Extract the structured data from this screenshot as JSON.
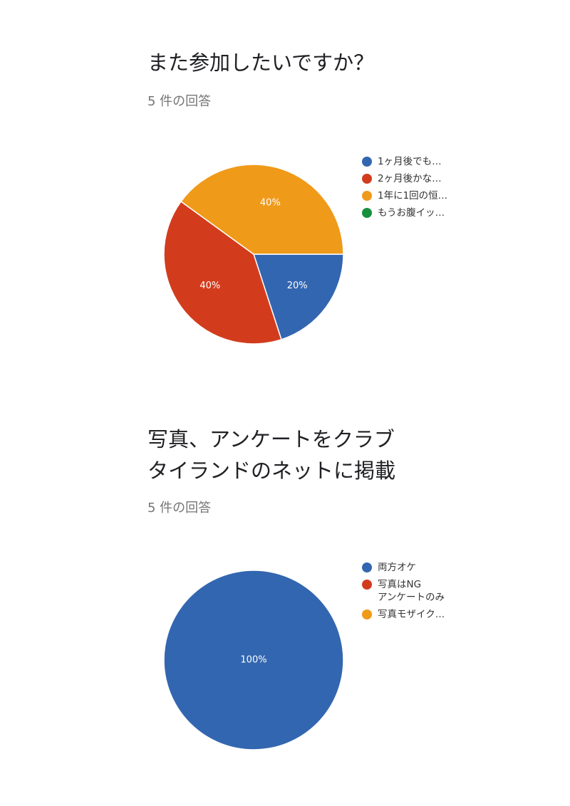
{
  "survey": {
    "questions": [
      {
        "title": "また参加したいですか？",
        "response_count": "5 件の回答"
      },
      {
        "title": "写真、アンケートをクラブ\nタイランドのネットに掲載",
        "response_count": "5 件の回答"
      }
    ]
  },
  "chart_data": [
    {
      "type": "pie",
      "title": "また参加したいですか？",
      "labels": [
        "1ヶ月後でも…",
        "2ヶ月後かな…",
        "1年に1回の恒…",
        "もうお腹イッ…"
      ],
      "values": [
        20,
        40,
        40,
        0
      ],
      "value_labels": [
        "20%",
        "40%",
        "40%",
        ""
      ],
      "colors": [
        "#3366b0",
        "#d23c1d",
        "#f09a1a",
        "#16903c"
      ],
      "legend_position": "right"
    },
    {
      "type": "pie",
      "title": "写真、アンケートをクラブ\nタイランドのネットに掲載",
      "labels": [
        "両方オケ",
        "写真はNG\nアンケートのみ",
        "写真モザイク…"
      ],
      "values": [
        100,
        0,
        0
      ],
      "value_labels": [
        "100%",
        "",
        ""
      ],
      "colors": [
        "#3366b0",
        "#d23c1d",
        "#f09a1a"
      ],
      "legend_position": "right"
    }
  ]
}
